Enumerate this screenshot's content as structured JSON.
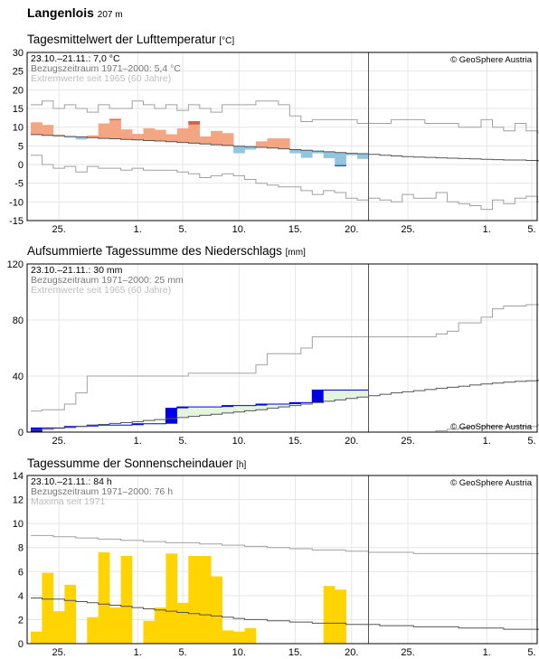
{
  "station": {
    "name": "Langenlois",
    "elevation": "207 m"
  },
  "copyright": "© GeoSphere Austria",
  "x_ticks": [
    "25.",
    "1.",
    "5.",
    "10.",
    "15.",
    "20.",
    "25.",
    "1.",
    "5."
  ],
  "chart_data": [
    {
      "type": "bar",
      "title": "Tagesmittelwert der Lufttemperatur",
      "unit": "[°C]",
      "ylim": [
        -15,
        30
      ],
      "yticks": [
        -15,
        -10,
        -5,
        0,
        5,
        10,
        15,
        20,
        25,
        30
      ],
      "legend": [
        "23.10.–21.11.: 7,0 °C",
        "Bezugszeitraum 1971–2000: 5,4 °C",
        "Extremwerte seit 1965 (60 Jahre)"
      ],
      "colors": {
        "warm": "#f4a582",
        "warm_extreme": "#d6604d",
        "cold": "#92c5de",
        "cold_extreme": "#2166ac",
        "climate": "#555555",
        "extreme": "#a0a0a0"
      },
      "observed": [
        11.3,
        10.6,
        8.0,
        7.2,
        6.7,
        7.8,
        11.0,
        12.2,
        9.4,
        8.2,
        9.7,
        9.3,
        8.1,
        9.7,
        11.6,
        7.5,
        9.0,
        8.4,
        3.0,
        4.0,
        6.2,
        7.0,
        7.0,
        3.0,
        1.8,
        3.0,
        1.7,
        -0.5,
        2.5,
        1.5
      ],
      "climate": [
        8.0,
        7.8,
        7.7,
        7.5,
        7.4,
        7.2,
        7.0,
        6.9,
        6.7,
        6.6,
        6.4,
        6.3,
        6.1,
        5.9,
        5.7,
        5.5,
        5.3,
        5.1,
        4.9,
        4.8,
        4.6,
        4.4,
        4.2,
        4.0,
        3.8,
        3.6,
        3.4,
        3.2,
        3.0,
        2.9,
        2.7,
        2.5,
        2.3,
        2.1,
        2.0,
        1.9,
        1.8,
        1.7,
        1.6,
        1.5,
        1.4,
        1.3,
        1.2,
        1.2,
        1.1,
        1.0
      ],
      "max_extreme": [
        16.0,
        17.0,
        15.0,
        16.0,
        15.0,
        14.0,
        16.0,
        15.0,
        15.0,
        17.0,
        16.0,
        15.0,
        16.0,
        14.5,
        16.0,
        15.0,
        14.0,
        16.0,
        16.0,
        16.0,
        17.0,
        17.0,
        16.0,
        13.0,
        11.5,
        12.0,
        12.0,
        12.0,
        12.0,
        11.0,
        11.0,
        11.0,
        12.0,
        12.0,
        12.0,
        11.0,
        11.0,
        11.0,
        10.0,
        10.0,
        12.0,
        10.0,
        9.0,
        11.0,
        9.0,
        8.5
      ],
      "min_extreme": [
        2.5,
        0.0,
        -1.0,
        -0.5,
        -2.0,
        -0.5,
        -1.0,
        -1.0,
        -1.5,
        -1.0,
        -1.5,
        -1.5,
        -1.5,
        -2.0,
        -2.5,
        -3.5,
        -3.0,
        -2.5,
        -3.0,
        -4.0,
        -5.0,
        -5.5,
        -6.0,
        -6.0,
        -7.0,
        -8.0,
        -7.0,
        -7.5,
        -9.0,
        -9.5,
        -9.0,
        -9.5,
        -10.0,
        -8.0,
        -9.0,
        -9.0,
        -7.5,
        -10.0,
        -10.5,
        -11.0,
        -12.0,
        -9.5,
        -10.5,
        -9.0,
        -8.5,
        -10.0
      ]
    },
    {
      "type": "area",
      "title": "Aufsummierte Tagessumme des Niederschlags",
      "unit": "[mm]",
      "ylim": [
        0,
        120
      ],
      "yticks": [
        0,
        40,
        80,
        120
      ],
      "legend": [
        "23.10.–21.11.: 30 mm",
        "Bezugszeitraum 1971–2000: 25 mm",
        "Extremwerte seit 1965 (60 Jahre)"
      ],
      "colors": {
        "wet": "#0000e6",
        "dry_fill": "#e3f5de",
        "climate": "#555555",
        "extreme": "#a0a0a0"
      },
      "observed_cumulative": [
        3,
        3,
        3,
        4,
        4,
        5,
        5,
        5,
        5,
        6,
        6,
        6,
        17,
        18,
        18,
        18,
        18,
        19,
        19,
        19,
        20,
        20,
        20,
        21,
        21,
        30,
        30,
        30,
        30,
        30
      ],
      "climate_cumulative": [
        1.5,
        2.0,
        2.7,
        3.4,
        4.1,
        4.8,
        5.5,
        6.2,
        6.8,
        7.5,
        8.3,
        9.0,
        9.7,
        10.4,
        11.2,
        12.0,
        12.8,
        13.6,
        14.4,
        15.2,
        16.0,
        17.0,
        18.0,
        19.0,
        20.0,
        21.0,
        22.0,
        23.0,
        24.0,
        25.0,
        26.0,
        27.0,
        28.0,
        28.8,
        29.6,
        30.4,
        31.2,
        32.0,
        32.8,
        33.6,
        34.3,
        35.0,
        35.6,
        36.2,
        36.6,
        37.0
      ],
      "max_extreme": [
        15,
        16,
        16,
        20,
        28,
        40,
        40,
        40,
        40,
        40,
        40,
        40,
        40,
        40,
        42,
        42,
        42,
        42,
        42,
        42,
        48,
        56,
        56,
        56,
        60,
        68,
        68,
        68,
        68,
        68,
        68,
        68,
        68,
        68,
        68,
        68,
        70,
        72,
        78,
        78,
        82,
        88,
        90,
        90,
        91,
        91
      ],
      "min_extreme": [
        0,
        0,
        0,
        0,
        0,
        0,
        0,
        0,
        0,
        0,
        0,
        0,
        0,
        0,
        0,
        0,
        0,
        0,
        0,
        0,
        0,
        0,
        0,
        0,
        0,
        0,
        0,
        0,
        0,
        0,
        0,
        0,
        0,
        0,
        0,
        0,
        1,
        2,
        3,
        4,
        4,
        4,
        4,
        4,
        4,
        5
      ]
    },
    {
      "type": "bar",
      "title": "Tagessumme der Sonnenscheindauer",
      "unit": "[h]",
      "ylim": [
        0,
        14
      ],
      "yticks": [
        0,
        2,
        4,
        6,
        8,
        10,
        12,
        14
      ],
      "legend": [
        "23.10.–21.11.: 84 h",
        "Bezugszeitraum 1971–2000: 76 h",
        "Maxima seit 1971"
      ],
      "colors": {
        "sun": "#ffd400",
        "climate": "#555555",
        "extreme": "#a0a0a0"
      },
      "observed": [
        1.0,
        5.9,
        2.7,
        4.9,
        0.0,
        2.2,
        7.6,
        3.0,
        7.3,
        0.0,
        1.9,
        3.0,
        7.5,
        3.4,
        7.3,
        7.3,
        5.6,
        1.1,
        1.0,
        1.3,
        0.0,
        0.0,
        0.0,
        0.0,
        0.0,
        0.0,
        4.8,
        4.5,
        0.0,
        0.0
      ],
      "climate": [
        3.8,
        3.7,
        3.7,
        3.6,
        3.5,
        3.4,
        3.3,
        3.2,
        3.1,
        3.0,
        2.9,
        2.8,
        2.7,
        2.6,
        2.5,
        2.4,
        2.3,
        2.2,
        2.1,
        2.0,
        2.0,
        1.9,
        1.9,
        1.8,
        1.8,
        1.7,
        1.7,
        1.7,
        1.6,
        1.6,
        1.6,
        1.5,
        1.5,
        1.5,
        1.4,
        1.4,
        1.4,
        1.4,
        1.3,
        1.3,
        1.3,
        1.3,
        1.2,
        1.2,
        1.2,
        1.2
      ],
      "max_extreme": [
        9.0,
        9.0,
        8.9,
        8.9,
        8.8,
        8.8,
        8.7,
        8.7,
        8.6,
        8.6,
        8.5,
        8.5,
        8.4,
        8.4,
        8.4,
        8.3,
        8.3,
        8.2,
        8.2,
        8.1,
        8.1,
        8.0,
        8.0,
        7.9,
        7.9,
        7.8,
        7.8,
        7.8,
        7.7,
        7.7,
        7.6,
        7.6,
        7.6,
        7.6,
        7.5,
        7.5,
        7.5,
        7.5,
        7.5,
        7.5,
        7.5,
        7.5,
        7.5,
        7.5,
        7.5,
        7.5
      ]
    }
  ]
}
